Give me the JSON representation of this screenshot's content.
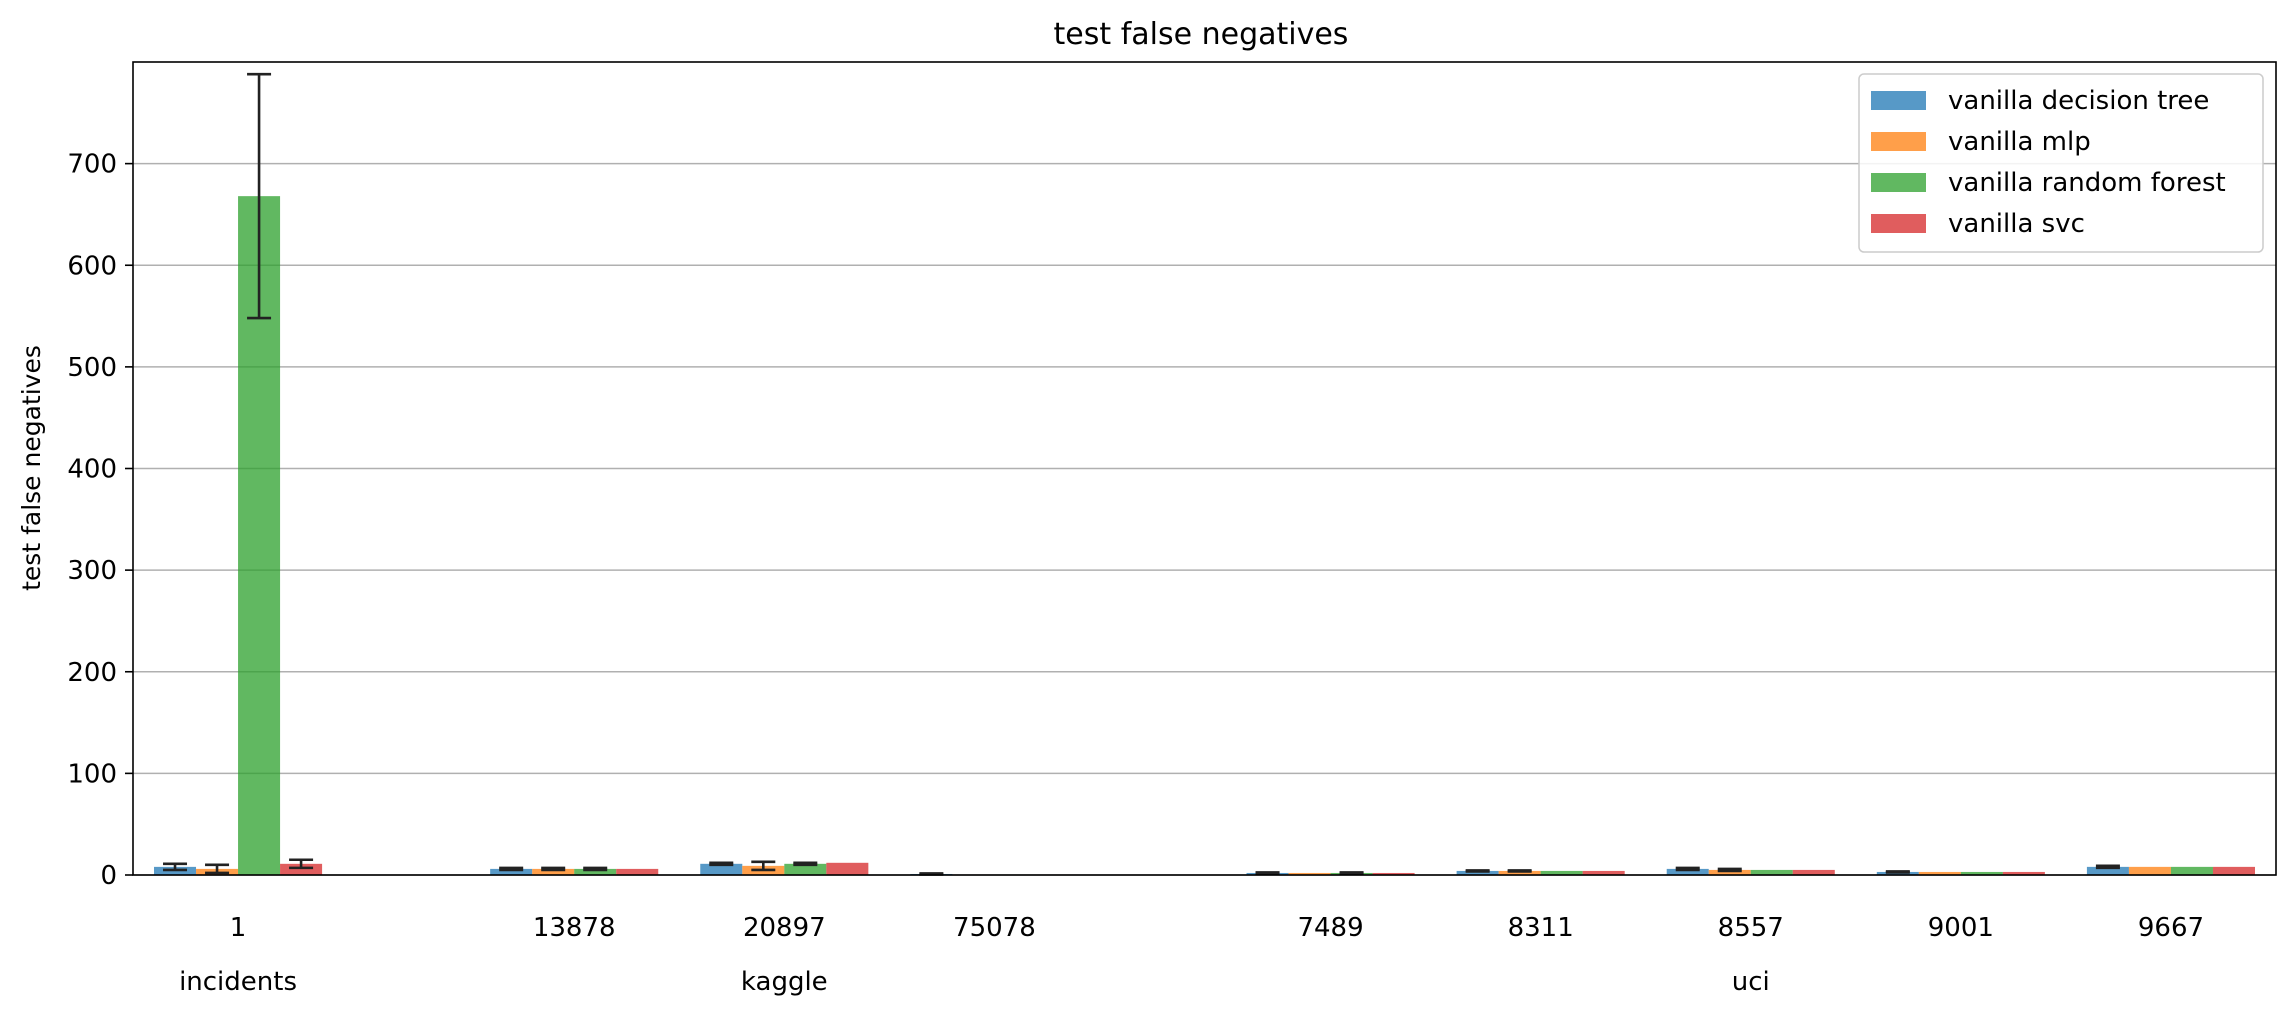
{
  "chart_data": {
    "type": "bar",
    "title": "test false negatives",
    "xlabel": "",
    "ylabel": "test false negatives",
    "ylim": [
      0,
      800
    ],
    "yticks": [
      0,
      100,
      200,
      300,
      400,
      500,
      600,
      700
    ],
    "grid": "horizontal",
    "legend_position": "top-right",
    "categories": [
      "1",
      "13878",
      "20897",
      "75078",
      "7489",
      "8311",
      "8557",
      "9001",
      "9667"
    ],
    "groups": [
      {
        "label": "incidents",
        "categories": [
          "1"
        ]
      },
      {
        "label": "kaggle",
        "categories": [
          "13878",
          "20897",
          "75078"
        ]
      },
      {
        "label": "uci",
        "categories": [
          "7489",
          "8311",
          "8557",
          "9001",
          "9667"
        ]
      }
    ],
    "series": [
      {
        "name": "vanilla decision tree",
        "color": "#1f77b4",
        "values": [
          8,
          6,
          11,
          1,
          2,
          4,
          6,
          3,
          8
        ],
        "errors": [
          3,
          1,
          1,
          0.5,
          0.5,
          0.5,
          1,
          0.5,
          1
        ]
      },
      {
        "name": "vanilla mlp",
        "color": "#ff7f0e",
        "values": [
          6,
          6,
          9,
          0.5,
          2,
          4,
          5,
          3,
          8
        ],
        "errors": [
          4,
          1,
          4,
          0,
          0,
          0.5,
          1,
          0,
          0
        ]
      },
      {
        "name": "vanilla random forest",
        "color": "#2ca02c",
        "values": [
          668,
          6,
          11,
          0.5,
          2,
          4,
          5,
          3,
          8
        ],
        "errors": [
          120,
          1,
          1,
          0,
          0.5,
          0,
          0,
          0,
          0
        ]
      },
      {
        "name": "vanilla svc",
        "color": "#d62728",
        "values": [
          11,
          6,
          12,
          0.5,
          2,
          4,
          5,
          3,
          8
        ],
        "errors": [
          4,
          0,
          0,
          0,
          0,
          0,
          0,
          0,
          0
        ]
      }
    ]
  }
}
